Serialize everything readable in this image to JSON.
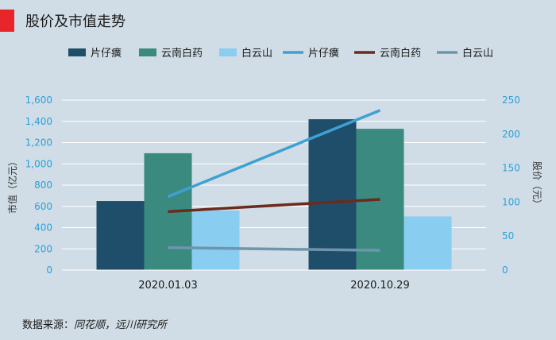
{
  "title": "股价及市值走势",
  "source": {
    "label": "数据来源：",
    "value": "同花顺，远川研究所"
  },
  "colors": {
    "bar_pzh": "#1f4e6b",
    "bar_ynby": "#3a8a80",
    "bar_bys": "#89cdf1",
    "line_pzh": "#3fa0d3",
    "line_ynby": "#6b2a1d",
    "line_bys": "#6f95ad",
    "axis_tick": "#2aa0d8"
  },
  "chart_data": {
    "type": "bar",
    "categories": [
      "2020.01.03",
      "2020.10.29"
    ],
    "ylabel": "市值（亿元）",
    "y2label": "股价（元）",
    "ylim": [
      0,
      1600
    ],
    "y2lim": [
      0,
      250
    ],
    "yticks": [
      "0",
      "200",
      "400",
      "600",
      "800",
      "1,000",
      "1,200",
      "1,400",
      "1,600"
    ],
    "y2ticks": [
      "0",
      "50",
      "100",
      "150",
      "200",
      "250"
    ],
    "grid": true,
    "legend_position": "top",
    "bars": [
      {
        "name": "片仔癀",
        "values": [
          650,
          1420
        ],
        "color_key": "bar_pzh"
      },
      {
        "name": "云南白药",
        "values": [
          1100,
          1330
        ],
        "color_key": "bar_ynby"
      },
      {
        "name": "白云山",
        "values": [
          560,
          505
        ],
        "color_key": "bar_bys"
      }
    ],
    "lines": [
      {
        "name": "片仔癀",
        "values": [
          108,
          235
        ],
        "color_key": "line_pzh"
      },
      {
        "name": "云南白药",
        "values": [
          86,
          104
        ],
        "color_key": "line_ynby"
      },
      {
        "name": "白云山",
        "values": [
          33,
          29
        ],
        "color_key": "line_bys"
      }
    ]
  }
}
